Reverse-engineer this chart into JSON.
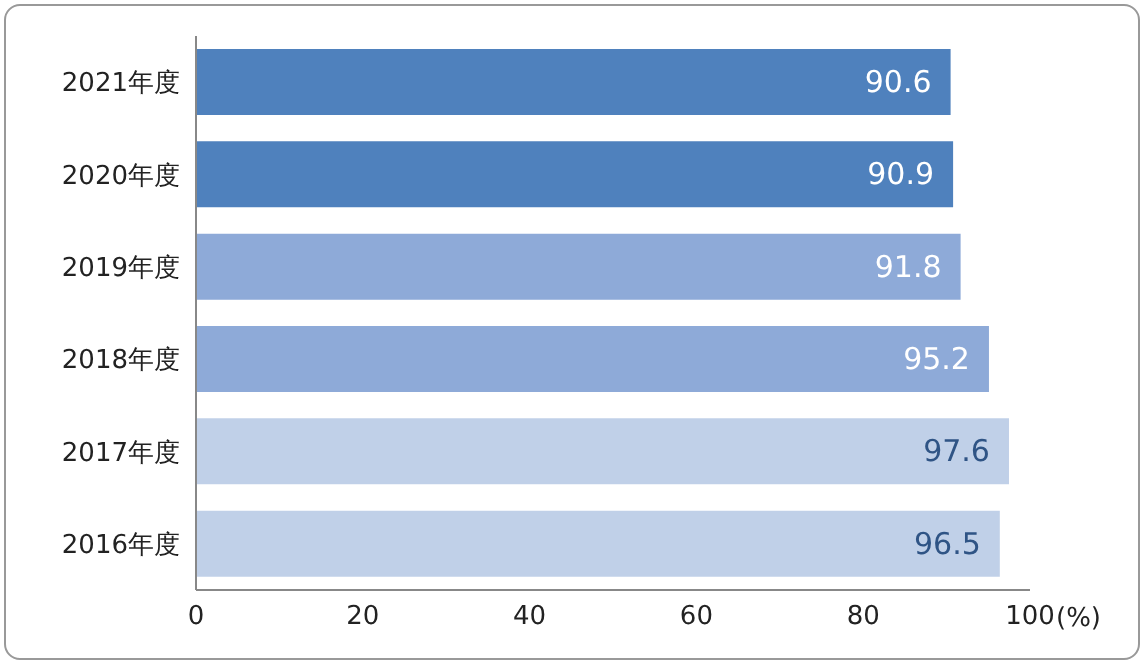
{
  "chart_data": {
    "type": "bar",
    "orientation": "horizontal",
    "categories": [
      "2021年度",
      "2020年度",
      "2019年度",
      "2018年度",
      "2017年度",
      "2016年度"
    ],
    "values": [
      90.6,
      90.9,
      91.8,
      95.2,
      97.6,
      96.5
    ],
    "colors": [
      "#4f81bd",
      "#4f81bd",
      "#8eaad8",
      "#8eaad8",
      "#c0d0e8",
      "#c0d0e8"
    ],
    "xlim": [
      0,
      100
    ],
    "xticks": [
      0,
      20,
      40,
      60,
      80,
      100
    ],
    "xlabel": "(%)",
    "data_labels": true,
    "grid": false
  }
}
